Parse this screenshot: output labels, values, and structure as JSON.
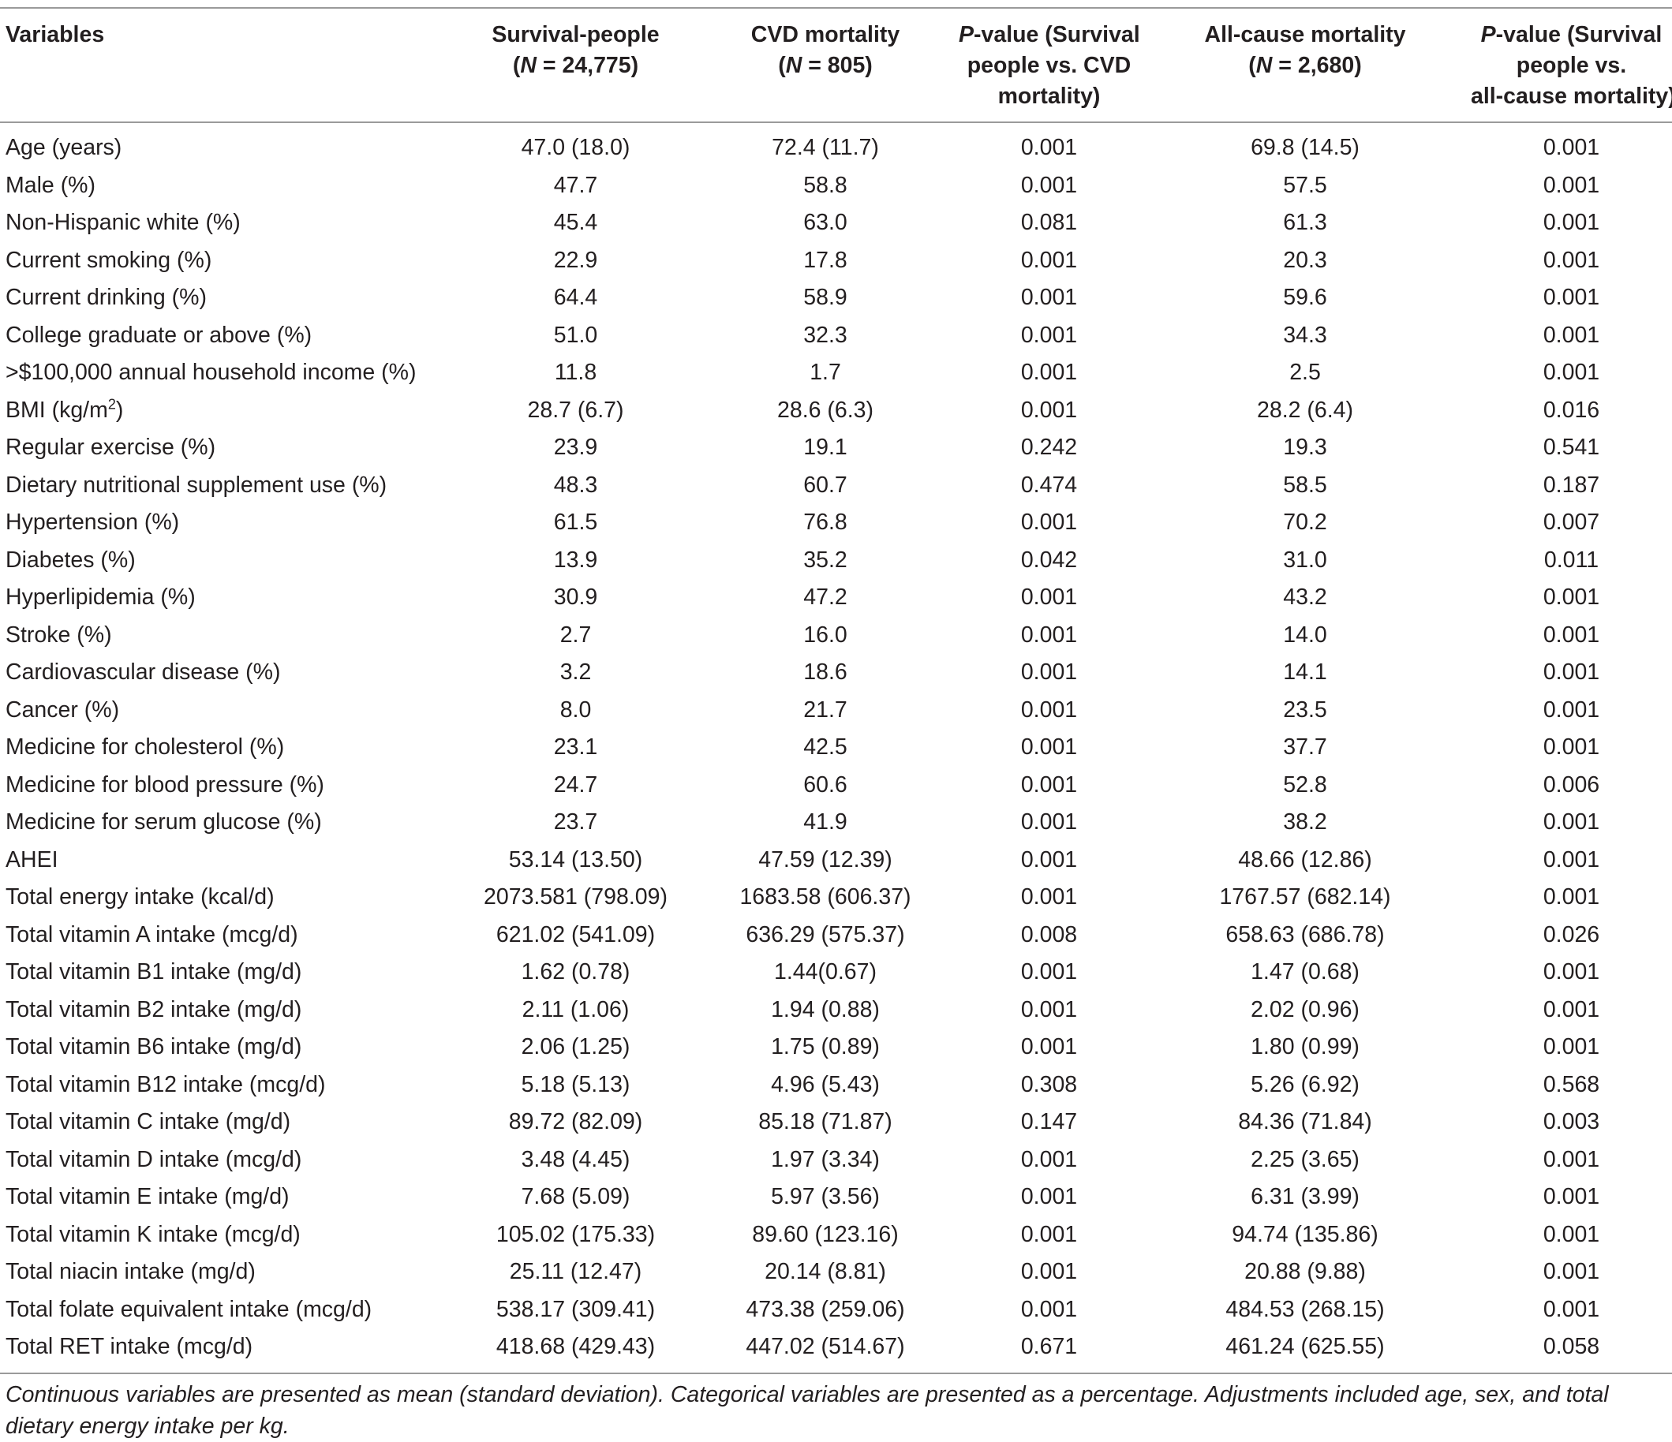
{
  "header": {
    "variables": "Variables",
    "survival": [
      "Survival-people",
      "(N = 24,775)"
    ],
    "cvd": [
      "CVD mortality",
      "(N = 805)"
    ],
    "p_cvd": [
      "P-value (Survival",
      "people vs. CVD",
      "mortality)"
    ],
    "allcause": [
      "All-cause mortality",
      "(N = 2,680)"
    ],
    "p_all": [
      "P-value (Survival",
      "people vs.",
      "all-cause mortality)"
    ]
  },
  "rows": [
    [
      "Age (years)",
      "47.0 (18.0)",
      "72.4 (11.7)",
      "0.001",
      "69.8 (14.5)",
      "0.001"
    ],
    [
      "Male (%)",
      "47.7",
      "58.8",
      "0.001",
      "57.5",
      "0.001"
    ],
    [
      "Non-Hispanic white (%)",
      "45.4",
      "63.0",
      "0.081",
      "61.3",
      "0.001"
    ],
    [
      "Current smoking (%)",
      "22.9",
      "17.8",
      "0.001",
      "20.3",
      "0.001"
    ],
    [
      "Current drinking (%)",
      "64.4",
      "58.9",
      "0.001",
      "59.6",
      "0.001"
    ],
    [
      "College graduate or above (%)",
      "51.0",
      "32.3",
      "0.001",
      "34.3",
      "0.001"
    ],
    [
      ">$100,000 annual household income (%)",
      "11.8",
      "1.7",
      "0.001",
      "2.5",
      "0.001"
    ],
    [
      "BMI (kg/m2)",
      "28.7 (6.7)",
      "28.6 (6.3)",
      "0.001",
      "28.2 (6.4)",
      "0.016"
    ],
    [
      "Regular exercise (%)",
      "23.9",
      "19.1",
      "0.242",
      "19.3",
      "0.541"
    ],
    [
      "Dietary nutritional supplement use (%)",
      "48.3",
      "60.7",
      "0.474",
      "58.5",
      "0.187"
    ],
    [
      "Hypertension (%)",
      "61.5",
      "76.8",
      "0.001",
      "70.2",
      "0.007"
    ],
    [
      "Diabetes (%)",
      "13.9",
      "35.2",
      "0.042",
      "31.0",
      "0.011"
    ],
    [
      "Hyperlipidemia (%)",
      "30.9",
      "47.2",
      "0.001",
      "43.2",
      "0.001"
    ],
    [
      "Stroke (%)",
      "2.7",
      "16.0",
      "0.001",
      "14.0",
      "0.001"
    ],
    [
      "Cardiovascular disease (%)",
      "3.2",
      "18.6",
      "0.001",
      "14.1",
      "0.001"
    ],
    [
      "Cancer (%)",
      "8.0",
      "21.7",
      "0.001",
      "23.5",
      "0.001"
    ],
    [
      "Medicine for cholesterol (%)",
      "23.1",
      "42.5",
      "0.001",
      "37.7",
      "0.001"
    ],
    [
      "Medicine for blood pressure (%)",
      "24.7",
      "60.6",
      "0.001",
      "52.8",
      "0.006"
    ],
    [
      "Medicine for serum glucose (%)",
      "23.7",
      "41.9",
      "0.001",
      "38.2",
      "0.001"
    ],
    [
      "AHEI",
      "53.14 (13.50)",
      "47.59 (12.39)",
      "0.001",
      "48.66 (12.86)",
      "0.001"
    ],
    [
      "Total energy intake (kcal/d)",
      "2073.581 (798.09)",
      "1683.58 (606.37)",
      "0.001",
      "1767.57 (682.14)",
      "0.001"
    ],
    [
      "Total vitamin A intake (mcg/d)",
      "621.02 (541.09)",
      "636.29 (575.37)",
      "0.008",
      "658.63 (686.78)",
      "0.026"
    ],
    [
      "Total vitamin B1 intake (mg/d)",
      "1.62 (0.78)",
      "1.44(0.67)",
      "0.001",
      "1.47 (0.68)",
      "0.001"
    ],
    [
      "Total vitamin B2 intake (mg/d)",
      "2.11 (1.06)",
      "1.94 (0.88)",
      "0.001",
      "2.02 (0.96)",
      "0.001"
    ],
    [
      "Total vitamin B6 intake (mg/d)",
      "2.06 (1.25)",
      "1.75 (0.89)",
      "0.001",
      "1.80 (0.99)",
      "0.001"
    ],
    [
      "Total vitamin B12 intake (mcg/d)",
      "5.18 (5.13)",
      "4.96 (5.43)",
      "0.308",
      "5.26 (6.92)",
      "0.568"
    ],
    [
      "Total vitamin C intake (mg/d)",
      "89.72 (82.09)",
      "85.18 (71.87)",
      "0.147",
      "84.36 (71.84)",
      "0.003"
    ],
    [
      "Total vitamin D intake (mcg/d)",
      "3.48 (4.45)",
      "1.97 (3.34)",
      "0.001",
      "2.25 (3.65)",
      "0.001"
    ],
    [
      "Total vitamin E intake (mg/d)",
      "7.68 (5.09)",
      "5.97 (3.56)",
      "0.001",
      "6.31 (3.99)",
      "0.001"
    ],
    [
      "Total vitamin K intake (mcg/d)",
      "105.02 (175.33)",
      "89.60 (123.16)",
      "0.001",
      "94.74 (135.86)",
      "0.001"
    ],
    [
      "Total niacin intake (mg/d)",
      "25.11 (12.47)",
      "20.14 (8.81)",
      "0.001",
      "20.88 (9.88)",
      "0.001"
    ],
    [
      "Total folate equivalent intake (mcg/d)",
      "538.17 (309.41)",
      "473.38 (259.06)",
      "0.001",
      "484.53 (268.15)",
      "0.001"
    ],
    [
      "Total RET intake (mcg/d)",
      "418.68 (429.43)",
      "447.02 (514.67)",
      "0.671",
      "461.24 (625.55)",
      "0.058"
    ]
  ],
  "footnote": "Continuous variables are presented as mean (standard deviation). Categorical variables are presented as a percentage. Adjustments included age, sex, and total dietary energy intake per kg."
}
